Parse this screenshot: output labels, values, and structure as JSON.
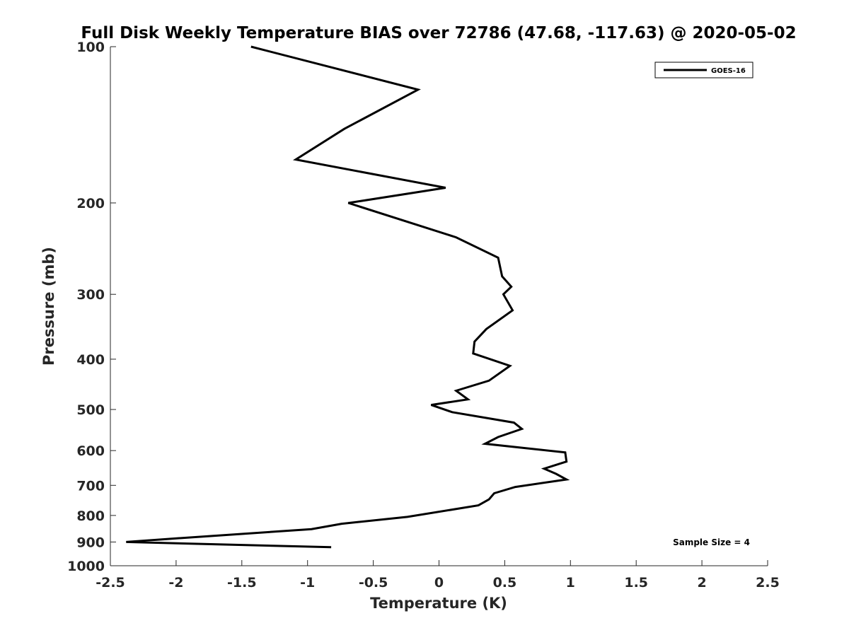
{
  "chart_data": {
    "type": "line",
    "title": "Full Disk Weekly Temperature BIAS over 72786 (47.68, -117.63) @ 2020-05-02",
    "xlabel": "Temperature (K)",
    "ylabel": "Pressure (mb)",
    "xlim": [
      -2.5,
      2.5
    ],
    "ylim": [
      100,
      1000
    ],
    "y_scale": "log",
    "y_inverted": true,
    "grid": false,
    "legend_position": "top-right",
    "x_ticks": [
      -2.5,
      -2,
      -1.5,
      -1,
      -0.5,
      0,
      0.5,
      1,
      1.5,
      2,
      2.5
    ],
    "x_tick_labels": [
      "-2.5",
      "-2",
      "-1.5",
      "-1",
      "-0.5",
      "0",
      "0.5",
      "1",
      "1.5",
      "2",
      "2.5"
    ],
    "y_ticks": [
      100,
      200,
      300,
      400,
      500,
      600,
      700,
      800,
      900,
      1000
    ],
    "y_tick_labels": [
      "100",
      "200",
      "300",
      "400",
      "500",
      "600",
      "700",
      "800",
      "900",
      "1000"
    ],
    "series": [
      {
        "name": "GOES-16",
        "color": "#000000",
        "x": [
          -1.43,
          -0.16,
          -0.72,
          -1.09,
          0.05,
          -0.69,
          0.13,
          0.45,
          0.48,
          0.55,
          0.49,
          0.56,
          0.36,
          0.27,
          0.26,
          0.54,
          0.38,
          0.13,
          0.22,
          -0.06,
          0.1,
          0.57,
          0.63,
          0.45,
          0.35,
          0.96,
          0.97,
          0.8,
          0.89,
          0.97,
          0.58,
          0.42,
          0.38,
          0.3,
          -0.24,
          -0.74,
          -0.97,
          -2.06,
          -2.38,
          -0.82
        ],
        "y": [
          100,
          121,
          144,
          165,
          187,
          200,
          233,
          255,
          277,
          290,
          300,
          322,
          350,
          370,
          390,
          412,
          440,
          460,
          478,
          490,
          506,
          530,
          545,
          565,
          582,
          605,
          630,
          650,
          665,
          682,
          705,
          725,
          745,
          765,
          805,
          830,
          850,
          888,
          900,
          921
        ]
      }
    ],
    "annotations": [
      "Sample Size = 4"
    ]
  }
}
